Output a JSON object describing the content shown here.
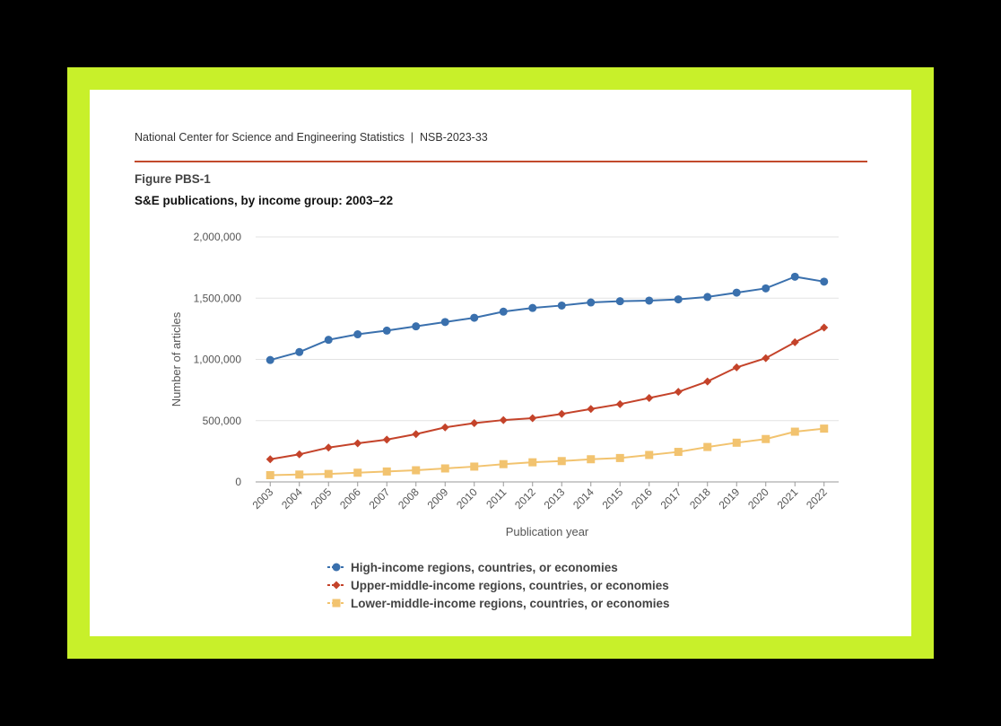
{
  "header": {
    "source": "National Center for Science and Engineering Statistics  |  NSB-2023-33",
    "figure_label": "Figure PBS-1",
    "figure_title": "S&E publications, by income group: 2003–22"
  },
  "colors": {
    "frame": "#c8f02a",
    "rule": "#c24a2c",
    "high": "#3a70ad",
    "upper": "#c4432a",
    "lower": "#f2c36f"
  },
  "chart_data": {
    "type": "line",
    "xlabel": "Publication year",
    "ylabel": "Number of articles",
    "x": [
      "2003",
      "2004",
      "2005",
      "2006",
      "2007",
      "2008",
      "2009",
      "2010",
      "2011",
      "2012",
      "2013",
      "2014",
      "2015",
      "2016",
      "2017",
      "2018",
      "2019",
      "2020",
      "2021",
      "2022"
    ],
    "ylim": [
      0,
      2000000
    ],
    "yticks": [
      0,
      500000,
      1000000,
      1500000,
      2000000
    ],
    "ytick_labels": [
      "0",
      "500,000",
      "1,000,000",
      "1,500,000",
      "2,000,000"
    ],
    "grid": true,
    "legend_position": "bottom",
    "series": [
      {
        "name": "High-income regions, countries, or economies",
        "marker": "circle",
        "color": "#3a70ad",
        "values": [
          995000,
          1060000,
          1160000,
          1205000,
          1235000,
          1270000,
          1305000,
          1340000,
          1390000,
          1420000,
          1440000,
          1465000,
          1475000,
          1480000,
          1490000,
          1510000,
          1545000,
          1580000,
          1675000,
          1635000
        ]
      },
      {
        "name": "Upper-middle-income regions, countries, or economies",
        "marker": "diamond",
        "color": "#c4432a",
        "values": [
          185000,
          225000,
          280000,
          315000,
          345000,
          390000,
          445000,
          480000,
          505000,
          520000,
          555000,
          595000,
          635000,
          685000,
          735000,
          820000,
          935000,
          1010000,
          1140000,
          1260000
        ]
      },
      {
        "name": "Lower-middle-income regions, countries, or economies",
        "marker": "square",
        "color": "#f2c36f",
        "values": [
          55000,
          60000,
          65000,
          75000,
          85000,
          95000,
          110000,
          125000,
          145000,
          160000,
          170000,
          185000,
          195000,
          220000,
          245000,
          285000,
          320000,
          350000,
          410000,
          435000
        ]
      }
    ]
  }
}
